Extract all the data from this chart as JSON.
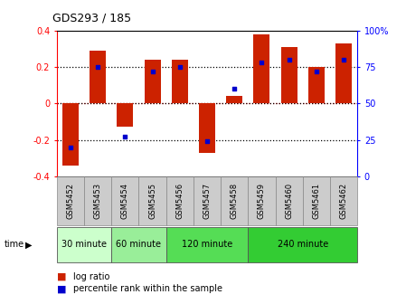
{
  "title": "GDS293 / 185",
  "samples": [
    "GSM5452",
    "GSM5453",
    "GSM5454",
    "GSM5455",
    "GSM5456",
    "GSM5457",
    "GSM5458",
    "GSM5459",
    "GSM5460",
    "GSM5461",
    "GSM5462"
  ],
  "log_ratio": [
    -0.34,
    0.29,
    -0.13,
    0.24,
    0.24,
    -0.27,
    0.04,
    0.38,
    0.31,
    0.2,
    0.33
  ],
  "percentile": [
    20,
    75,
    27,
    72,
    75,
    24,
    60,
    78,
    80,
    72,
    80
  ],
  "bar_color": "#cc2200",
  "dot_color": "#0000cc",
  "ylim": [
    -0.4,
    0.4
  ],
  "y2lim": [
    0,
    100
  ],
  "yticks": [
    -0.4,
    -0.2,
    0.0,
    0.2,
    0.4
  ],
  "y2ticks": [
    0,
    25,
    50,
    75,
    100
  ],
  "dotted_lines": [
    -0.2,
    0.2
  ],
  "red_line": 0.0,
  "time_groups": [
    {
      "label": "30 minute",
      "start": 0,
      "end": 1,
      "color": "#ccffcc"
    },
    {
      "label": "60 minute",
      "start": 2,
      "end": 3,
      "color": "#99ee99"
    },
    {
      "label": "120 minute",
      "start": 4,
      "end": 6,
      "color": "#55dd55"
    },
    {
      "label": "240 minute",
      "start": 7,
      "end": 10,
      "color": "#33cc33"
    }
  ],
  "legend_bar": "log ratio",
  "legend_dot": "percentile rank within the sample",
  "bg_color": "#ffffff",
  "tick_label_bg": "#cccccc"
}
